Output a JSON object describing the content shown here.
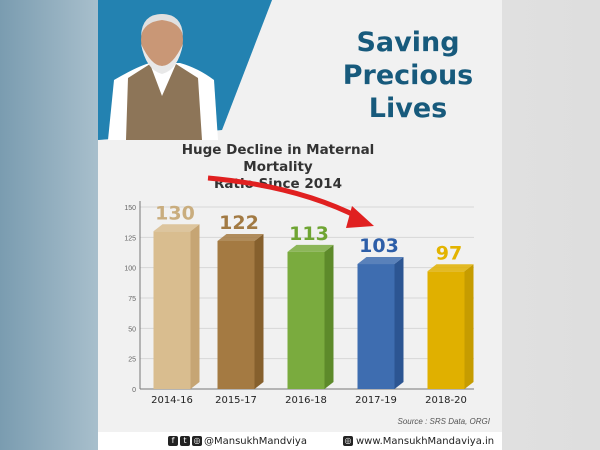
{
  "header": {
    "title_line1": "Saving",
    "title_line2": "Precious Lives"
  },
  "footer": {
    "handle": "@MansukhMandviya",
    "website": "www.MansukhMandaviya.in",
    "icons": [
      "facebook-icon",
      "twitter-icon",
      "instagram-icon",
      "globe-icon"
    ]
  },
  "chart_data": {
    "type": "bar",
    "title": "Huge Decline in Maternal Mortality Ratio Since 2014",
    "title_line1": "Huge Decline in Maternal Mortality",
    "title_line2": "Ratio Since 2014",
    "categories": [
      "2014-16",
      "2015-17",
      "2016-18",
      "2017-19",
      "2018-20"
    ],
    "values": [
      130,
      122,
      113,
      103,
      97
    ],
    "data_labels": [
      "130",
      "122",
      "113",
      "103",
      "97"
    ],
    "colors": [
      "#d9bd8f",
      "#a47a42",
      "#7aab3e",
      "#3e6db0",
      "#e0b000"
    ],
    "side_colors": [
      "#c6a574",
      "#86602d",
      "#5d8a2a",
      "#2c5592",
      "#c69c00"
    ],
    "label_colors": [
      "#c9ad7e",
      "#a27a43",
      "#6fa533",
      "#2d5ea8",
      "#e3b400"
    ],
    "ylim": [
      0,
      150
    ],
    "yticks": [
      "0",
      "25",
      "50",
      "75",
      "100",
      "125",
      "150"
    ],
    "grid": true,
    "annotation": "Source : SRS Data, ORGI",
    "arrow_color": "#e02020"
  }
}
